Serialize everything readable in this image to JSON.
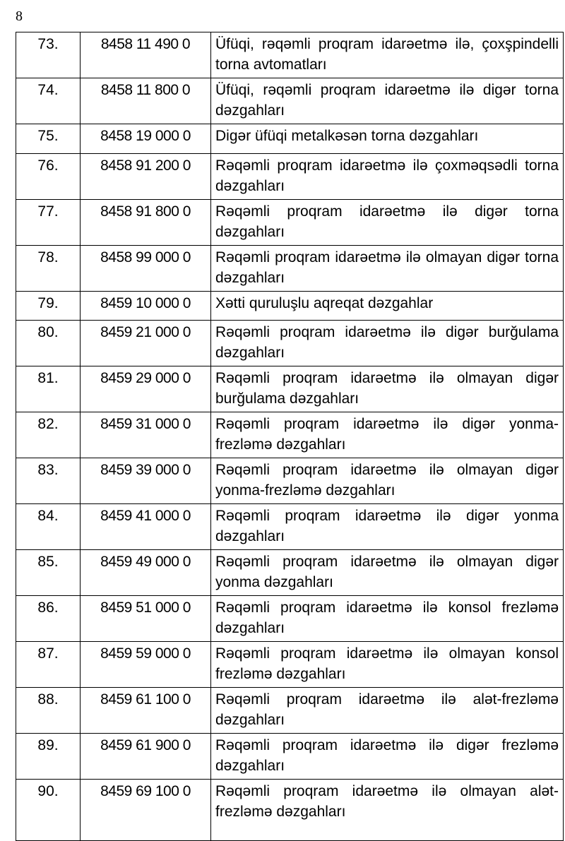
{
  "page_number": "8",
  "rows": [
    {
      "no": "73.",
      "code": "8458 11 490 0",
      "desc": "Üfüqi, rəqəmli proqram idarəetmə ilə, çoxşpindelli torna avtomatları"
    },
    {
      "no": "74.",
      "code": "8458 11 800 0",
      "desc": "Üfüqi, rəqəmli proqram idarəetmə ilə digər torna dəzgahları"
    },
    {
      "no": "75.",
      "code": "8458 19 000 0",
      "desc": "Digər üfüqi metalkəsən torna dəzgahları"
    },
    {
      "no": "76.",
      "code": "8458 91 200 0",
      "desc": "Rəqəmli proqram idarəetmə ilə çoxməqsədli torna dəzgahları"
    },
    {
      "no": "77.",
      "code": "8458 91 800 0",
      "desc": "Rəqəmli proqram idarəetmə ilə digər torna dəzgahları"
    },
    {
      "no": "78.",
      "code": "8458 99 000 0",
      "desc": "Rəqəmli proqram idarəetmə ilə olmayan digər torna dəzgahları"
    },
    {
      "no": "79.",
      "code": "8459 10 000 0",
      "desc": "Xətti quruluşlu aqreqat dəzgahlar"
    },
    {
      "no": "80.",
      "code": "8459 21 000 0",
      "desc": "Rəqəmli proqram idarəetmə ilə digər burğulama dəzgahları"
    },
    {
      "no": "81.",
      "code": "8459 29 000 0",
      "desc": "Rəqəmli proqram idarəetmə ilə olmayan digər burğulama dəzgahları"
    },
    {
      "no": "82.",
      "code": "8459 31 000 0",
      "desc": "Rəqəmli proqram idarəetmə ilə digər yonma-frezləmə dəzgahları"
    },
    {
      "no": "83.",
      "code": "8459 39 000 0",
      "desc": "Rəqəmli proqram idarəetmə ilə olmayan digər yonma-frezləmə dəzgahları"
    },
    {
      "no": "84.",
      "code": "8459 41 000 0",
      "desc": "Rəqəmli proqram idarəetmə ilə digər yonma dəzgahları"
    },
    {
      "no": "85.",
      "code": "8459 49 000 0",
      "desc": "Rəqəmli proqram idarəetmə ilə olmayan digər yonma dəzgahları"
    },
    {
      "no": "86.",
      "code": "8459 51 000 0",
      "desc": "Rəqəmli proqram idarəetmə ilə konsol frezləmə dəzgahları"
    },
    {
      "no": "87.",
      "code": "8459 59 000 0",
      "desc": "Rəqəmli proqram idarəetmə ilə olmayan konsol frezləmə dəzgahları"
    },
    {
      "no": "88.",
      "code": "8459 61 100 0",
      "desc": "Rəqəmli proqram idarəetmə ilə alət-frezləmə dəzgahları"
    },
    {
      "no": "89.",
      "code": "8459 61 900 0",
      "desc": "Rəqəmli proqram idarəetmə ilə digər frezləmə dəzgahları"
    },
    {
      "no": "90.",
      "code": "8459 69 100 0",
      "desc": "Rəqəmli proqram idarəetmə ilə olmayan alət-frezləmə dəzgahları"
    }
  ]
}
